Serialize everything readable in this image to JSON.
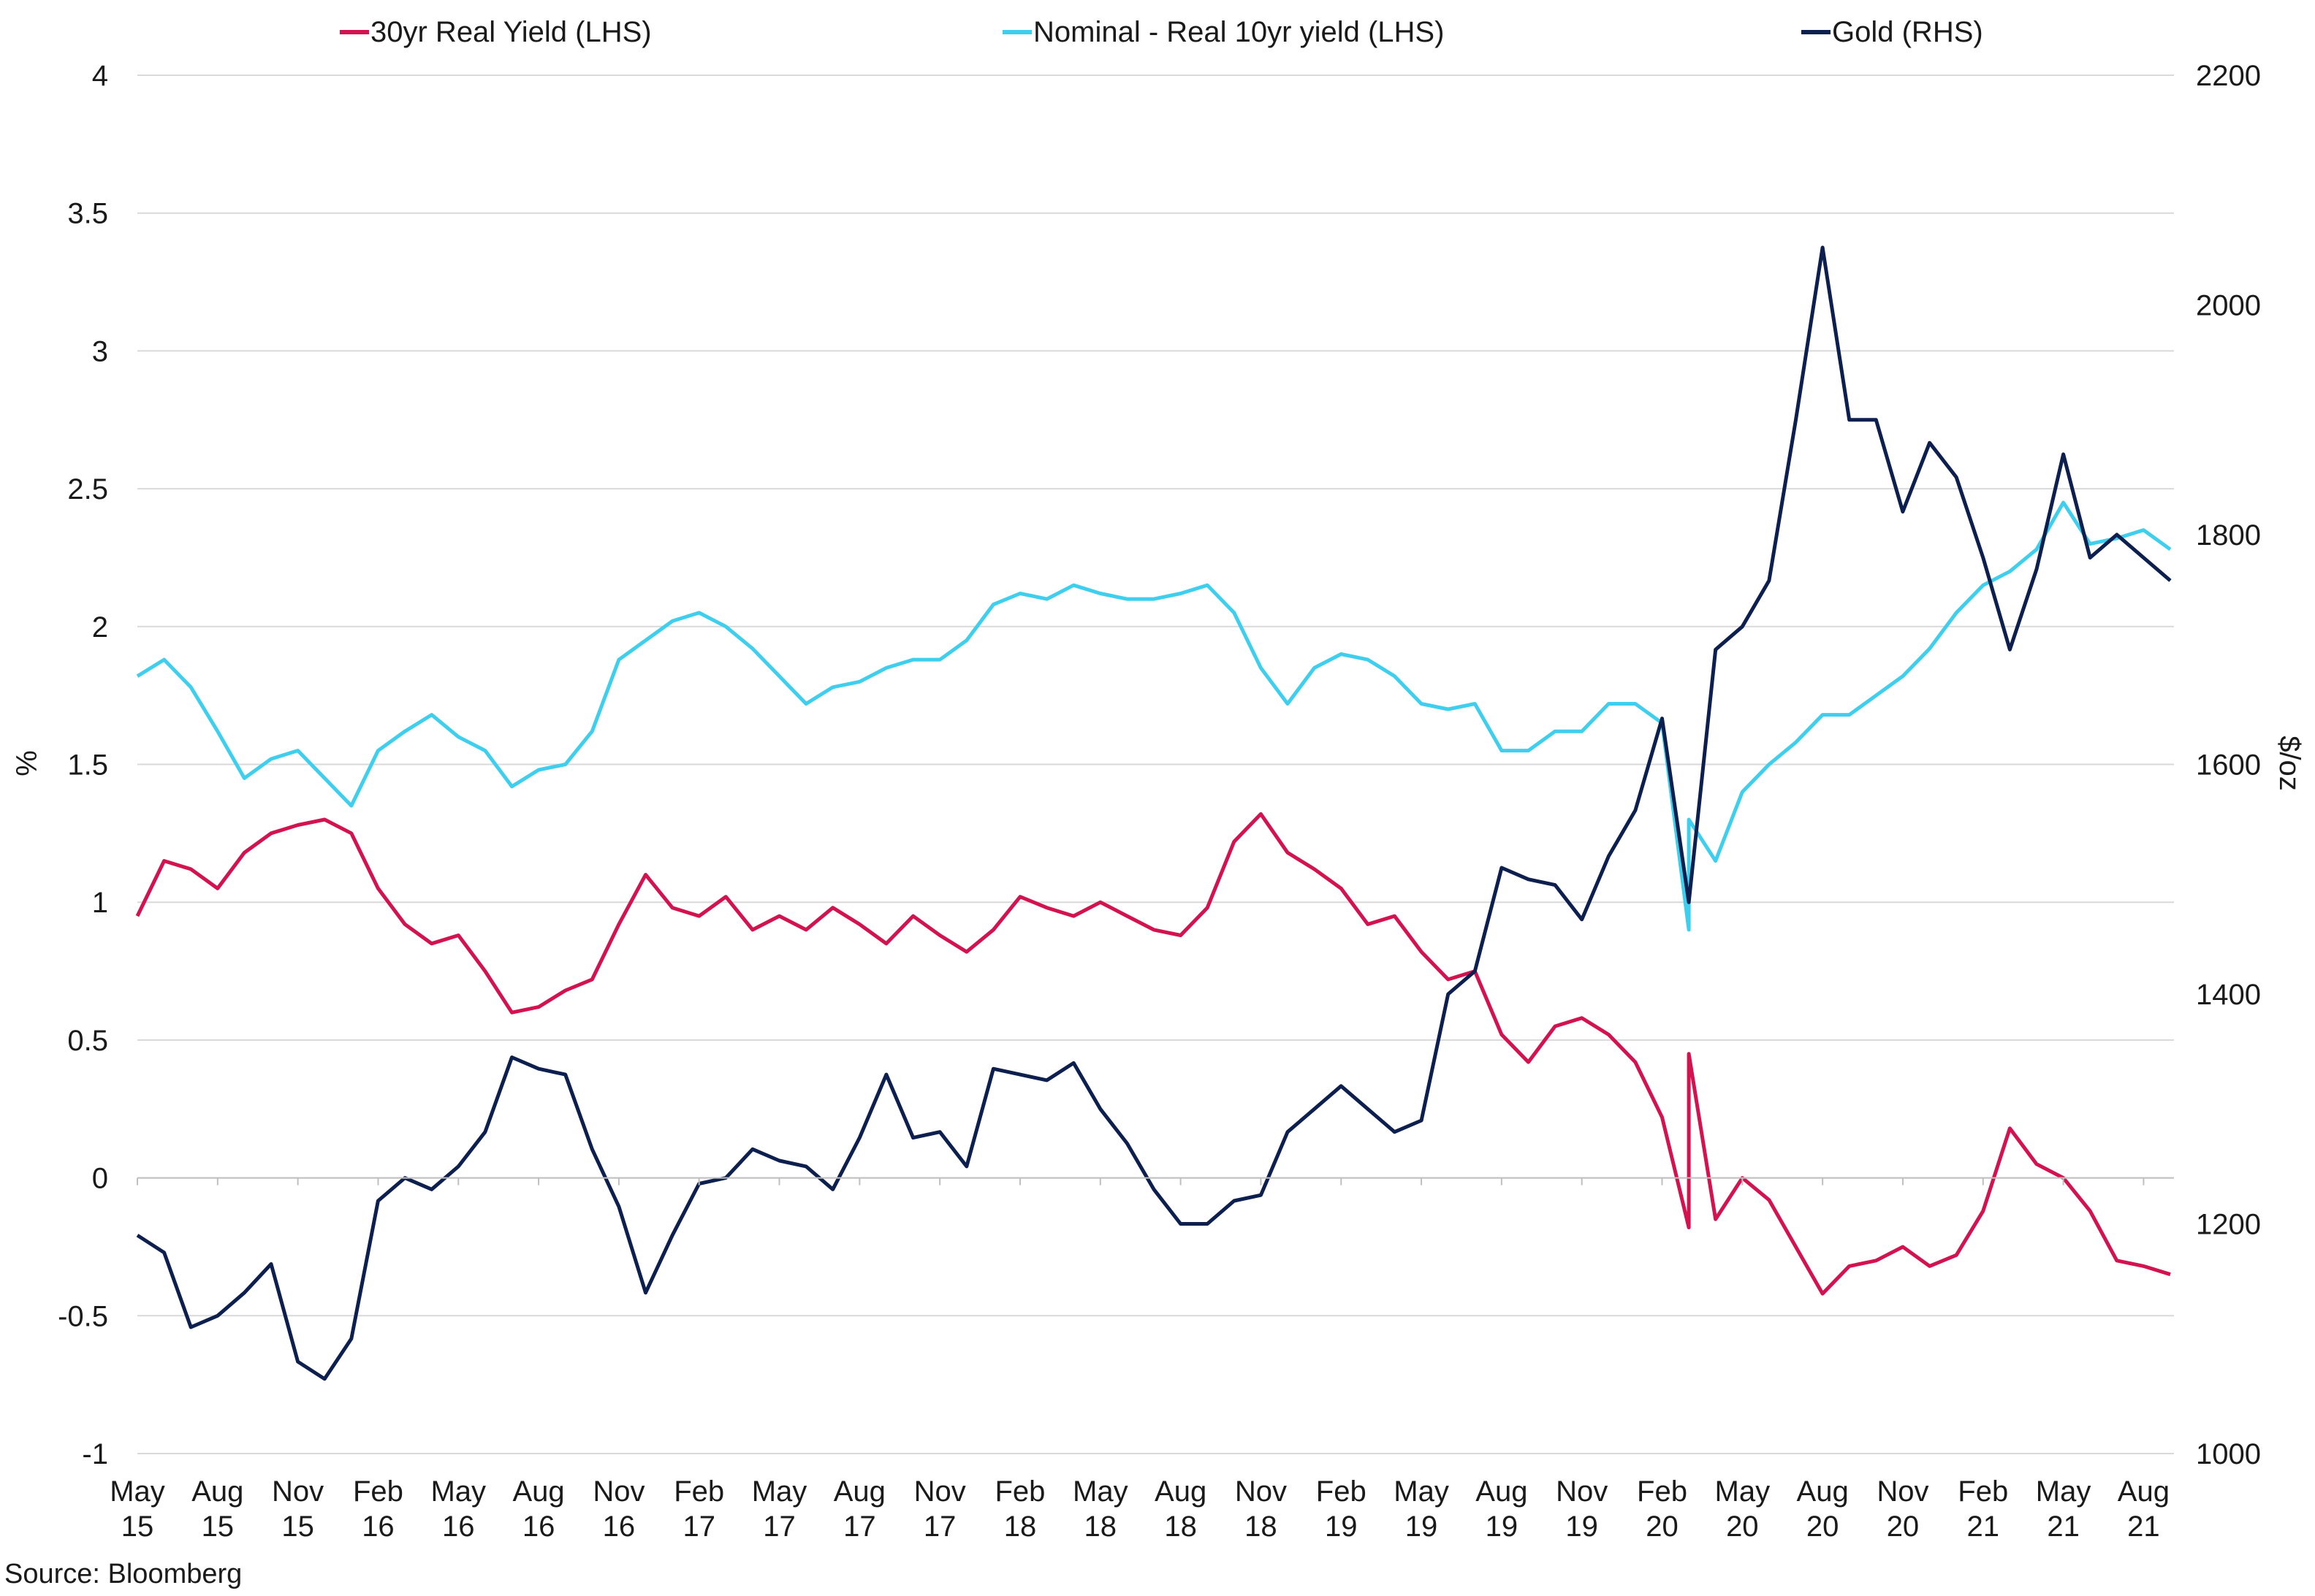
{
  "chart_data": {
    "type": "line",
    "title": "",
    "source": "Source: Bloomberg",
    "legend_position": "top",
    "grid": true,
    "y_left": {
      "label": "%",
      "ticks": [
        "4",
        "3.5",
        "3",
        "2.5",
        "2",
        "1.5",
        "1",
        "0.5",
        "0",
        "-0.5",
        "-1"
      ],
      "range": [
        -1,
        4
      ]
    },
    "y_right": {
      "label": "$/oz",
      "ticks": [
        "2200",
        "2000",
        "1800",
        "1600",
        "1400",
        "1200",
        "1000"
      ],
      "range": [
        1000,
        2200
      ]
    },
    "x_ticks": [
      {
        "month": "May",
        "year": "15"
      },
      {
        "month": "Aug",
        "year": "15"
      },
      {
        "month": "Nov",
        "year": "15"
      },
      {
        "month": "Feb",
        "year": "16"
      },
      {
        "month": "May",
        "year": "16"
      },
      {
        "month": "Aug",
        "year": "16"
      },
      {
        "month": "Nov",
        "year": "16"
      },
      {
        "month": "Feb",
        "year": "17"
      },
      {
        "month": "May",
        "year": "17"
      },
      {
        "month": "Aug",
        "year": "17"
      },
      {
        "month": "Nov",
        "year": "17"
      },
      {
        "month": "Feb",
        "year": "18"
      },
      {
        "month": "May",
        "year": "18"
      },
      {
        "month": "Aug",
        "year": "18"
      },
      {
        "month": "Nov",
        "year": "18"
      },
      {
        "month": "Feb",
        "year": "19"
      },
      {
        "month": "May",
        "year": "19"
      },
      {
        "month": "Aug",
        "year": "19"
      },
      {
        "month": "Nov",
        "year": "19"
      },
      {
        "month": "Feb",
        "year": "20"
      },
      {
        "month": "May",
        "year": "20"
      },
      {
        "month": "Aug",
        "year": "20"
      },
      {
        "month": "Nov",
        "year": "20"
      },
      {
        "month": "Feb",
        "year": "21"
      },
      {
        "month": "May",
        "year": "21"
      },
      {
        "month": "Aug",
        "year": "21"
      }
    ],
    "x_range": [
      "2015-05",
      "2021-09"
    ],
    "series": [
      {
        "name": "30yr Real Yield (LHS)",
        "axis": "left",
        "color": "#d3124f",
        "points": [
          [
            "2015-05",
            0.95
          ],
          [
            "2015-06",
            1.15
          ],
          [
            "2015-07",
            1.12
          ],
          [
            "2015-08",
            1.05
          ],
          [
            "2015-09",
            1.18
          ],
          [
            "2015-10",
            1.25
          ],
          [
            "2015-11",
            1.28
          ],
          [
            "2015-12",
            1.3
          ],
          [
            "2016-01",
            1.25
          ],
          [
            "2016-02",
            1.05
          ],
          [
            "2016-03",
            0.92
          ],
          [
            "2016-04",
            0.85
          ],
          [
            "2016-05",
            0.88
          ],
          [
            "2016-06",
            0.75
          ],
          [
            "2016-07",
            0.6
          ],
          [
            "2016-08",
            0.62
          ],
          [
            "2016-09",
            0.68
          ],
          [
            "2016-10",
            0.72
          ],
          [
            "2016-11",
            0.92
          ],
          [
            "2016-12",
            1.1
          ],
          [
            "2017-01",
            0.98
          ],
          [
            "2017-02",
            0.95
          ],
          [
            "2017-03",
            1.02
          ],
          [
            "2017-04",
            0.9
          ],
          [
            "2017-05",
            0.95
          ],
          [
            "2017-06",
            0.9
          ],
          [
            "2017-07",
            0.98
          ],
          [
            "2017-08",
            0.92
          ],
          [
            "2017-09",
            0.85
          ],
          [
            "2017-10",
            0.95
          ],
          [
            "2017-11",
            0.88
          ],
          [
            "2017-12",
            0.82
          ],
          [
            "2018-01",
            0.9
          ],
          [
            "2018-02",
            1.02
          ],
          [
            "2018-03",
            0.98
          ],
          [
            "2018-04",
            0.95
          ],
          [
            "2018-05",
            1.0
          ],
          [
            "2018-06",
            0.95
          ],
          [
            "2018-07",
            0.9
          ],
          [
            "2018-08",
            0.88
          ],
          [
            "2018-09",
            0.98
          ],
          [
            "2018-10",
            1.22
          ],
          [
            "2018-11",
            1.32
          ],
          [
            "2018-12",
            1.18
          ],
          [
            "2019-01",
            1.12
          ],
          [
            "2019-02",
            1.05
          ],
          [
            "2019-03",
            0.92
          ],
          [
            "2019-04",
            0.95
          ],
          [
            "2019-05",
            0.82
          ],
          [
            "2019-06",
            0.72
          ],
          [
            "2019-07",
            0.75
          ],
          [
            "2019-08",
            0.52
          ],
          [
            "2019-09",
            0.42
          ],
          [
            "2019-10",
            0.55
          ],
          [
            "2019-11",
            0.58
          ],
          [
            "2019-12",
            0.52
          ],
          [
            "2020-01",
            0.42
          ],
          [
            "2020-02",
            0.22
          ],
          [
            "2020-03",
            -0.18
          ],
          [
            "2020-03",
            0.45
          ],
          [
            "2020-04",
            -0.15
          ],
          [
            "2020-05",
            0.0
          ],
          [
            "2020-06",
            -0.08
          ],
          [
            "2020-07",
            -0.25
          ],
          [
            "2020-08",
            -0.42
          ],
          [
            "2020-09",
            -0.32
          ],
          [
            "2020-10",
            -0.3
          ],
          [
            "2020-11",
            -0.25
          ],
          [
            "2020-12",
            -0.32
          ],
          [
            "2021-01",
            -0.28
          ],
          [
            "2021-02",
            -0.12
          ],
          [
            "2021-03",
            0.18
          ],
          [
            "2021-04",
            0.05
          ],
          [
            "2021-05",
            0.0
          ],
          [
            "2021-06",
            -0.12
          ],
          [
            "2021-07",
            -0.3
          ],
          [
            "2021-08",
            -0.32
          ],
          [
            "2021-09",
            -0.35
          ]
        ]
      },
      {
        "name": "Nominal - Real 10yr yield (LHS)",
        "axis": "left",
        "color": "#3fcfee",
        "points": [
          [
            "2015-05",
            1.82
          ],
          [
            "2015-06",
            1.88
          ],
          [
            "2015-07",
            1.78
          ],
          [
            "2015-08",
            1.62
          ],
          [
            "2015-09",
            1.45
          ],
          [
            "2015-10",
            1.52
          ],
          [
            "2015-11",
            1.55
          ],
          [
            "2015-12",
            1.45
          ],
          [
            "2016-01",
            1.35
          ],
          [
            "2016-02",
            1.55
          ],
          [
            "2016-03",
            1.62
          ],
          [
            "2016-04",
            1.68
          ],
          [
            "2016-05",
            1.6
          ],
          [
            "2016-06",
            1.55
          ],
          [
            "2016-07",
            1.42
          ],
          [
            "2016-08",
            1.48
          ],
          [
            "2016-09",
            1.5
          ],
          [
            "2016-10",
            1.62
          ],
          [
            "2016-11",
            1.88
          ],
          [
            "2016-12",
            1.95
          ],
          [
            "2017-01",
            2.02
          ],
          [
            "2017-02",
            2.05
          ],
          [
            "2017-03",
            2.0
          ],
          [
            "2017-04",
            1.92
          ],
          [
            "2017-05",
            1.82
          ],
          [
            "2017-06",
            1.72
          ],
          [
            "2017-07",
            1.78
          ],
          [
            "2017-08",
            1.8
          ],
          [
            "2017-09",
            1.85
          ],
          [
            "2017-10",
            1.88
          ],
          [
            "2017-11",
            1.88
          ],
          [
            "2017-12",
            1.95
          ],
          [
            "2018-01",
            2.08
          ],
          [
            "2018-02",
            2.12
          ],
          [
            "2018-03",
            2.1
          ],
          [
            "2018-04",
            2.15
          ],
          [
            "2018-05",
            2.12
          ],
          [
            "2018-06",
            2.1
          ],
          [
            "2018-07",
            2.1
          ],
          [
            "2018-08",
            2.12
          ],
          [
            "2018-09",
            2.15
          ],
          [
            "2018-10",
            2.05
          ],
          [
            "2018-11",
            1.85
          ],
          [
            "2018-12",
            1.72
          ],
          [
            "2019-01",
            1.85
          ],
          [
            "2019-02",
            1.9
          ],
          [
            "2019-03",
            1.88
          ],
          [
            "2019-04",
            1.82
          ],
          [
            "2019-05",
            1.72
          ],
          [
            "2019-06",
            1.7
          ],
          [
            "2019-07",
            1.72
          ],
          [
            "2019-08",
            1.55
          ],
          [
            "2019-09",
            1.55
          ],
          [
            "2019-10",
            1.62
          ],
          [
            "2019-11",
            1.62
          ],
          [
            "2019-12",
            1.72
          ],
          [
            "2020-01",
            1.72
          ],
          [
            "2020-02",
            1.65
          ],
          [
            "2020-03",
            0.9
          ],
          [
            "2020-03",
            1.3
          ],
          [
            "2020-04",
            1.15
          ],
          [
            "2020-05",
            1.4
          ],
          [
            "2020-06",
            1.5
          ],
          [
            "2020-07",
            1.58
          ],
          [
            "2020-08",
            1.68
          ],
          [
            "2020-09",
            1.68
          ],
          [
            "2020-10",
            1.75
          ],
          [
            "2020-11",
            1.82
          ],
          [
            "2020-12",
            1.92
          ],
          [
            "2021-01",
            2.05
          ],
          [
            "2021-02",
            2.15
          ],
          [
            "2021-03",
            2.2
          ],
          [
            "2021-04",
            2.28
          ],
          [
            "2021-05",
            2.45
          ],
          [
            "2021-06",
            2.3
          ],
          [
            "2021-07",
            2.32
          ],
          [
            "2021-08",
            2.35
          ],
          [
            "2021-09",
            2.28
          ]
        ]
      },
      {
        "name": "Gold (RHS)",
        "axis": "right",
        "color": "#0c1f4f",
        "points": [
          [
            "2015-05",
            1190
          ],
          [
            "2015-06",
            1175
          ],
          [
            "2015-07",
            1110
          ],
          [
            "2015-08",
            1120
          ],
          [
            "2015-09",
            1140
          ],
          [
            "2015-10",
            1165
          ],
          [
            "2015-11",
            1080
          ],
          [
            "2015-12",
            1065
          ],
          [
            "2016-01",
            1100
          ],
          [
            "2016-02",
            1220
          ],
          [
            "2016-03",
            1240
          ],
          [
            "2016-04",
            1230
          ],
          [
            "2016-05",
            1250
          ],
          [
            "2016-06",
            1280
          ],
          [
            "2016-07",
            1345
          ],
          [
            "2016-08",
            1335
          ],
          [
            "2016-09",
            1330
          ],
          [
            "2016-10",
            1265
          ],
          [
            "2016-11",
            1215
          ],
          [
            "2016-12",
            1140
          ],
          [
            "2017-01",
            1190
          ],
          [
            "2017-02",
            1235
          ],
          [
            "2017-03",
            1240
          ],
          [
            "2017-04",
            1265
          ],
          [
            "2017-05",
            1255
          ],
          [
            "2017-06",
            1250
          ],
          [
            "2017-07",
            1230
          ],
          [
            "2017-08",
            1275
          ],
          [
            "2017-09",
            1330
          ],
          [
            "2017-10",
            1275
          ],
          [
            "2017-11",
            1280
          ],
          [
            "2017-12",
            1250
          ],
          [
            "2018-01",
            1335
          ],
          [
            "2018-02",
            1330
          ],
          [
            "2018-03",
            1325
          ],
          [
            "2018-04",
            1340
          ],
          [
            "2018-05",
            1300
          ],
          [
            "2018-06",
            1270
          ],
          [
            "2018-07",
            1230
          ],
          [
            "2018-08",
            1200
          ],
          [
            "2018-09",
            1200
          ],
          [
            "2018-10",
            1220
          ],
          [
            "2018-11",
            1225
          ],
          [
            "2018-12",
            1280
          ],
          [
            "2019-01",
            1300
          ],
          [
            "2019-02",
            1320
          ],
          [
            "2019-03",
            1300
          ],
          [
            "2019-04",
            1280
          ],
          [
            "2019-05",
            1290
          ],
          [
            "2019-06",
            1400
          ],
          [
            "2019-07",
            1420
          ],
          [
            "2019-08",
            1510
          ],
          [
            "2019-09",
            1500
          ],
          [
            "2019-10",
            1495
          ],
          [
            "2019-11",
            1465
          ],
          [
            "2019-12",
            1520
          ],
          [
            "2020-01",
            1560
          ],
          [
            "2020-02",
            1640
          ],
          [
            "2020-03",
            1480
          ],
          [
            "2020-04",
            1700
          ],
          [
            "2020-05",
            1720
          ],
          [
            "2020-06",
            1760
          ],
          [
            "2020-07",
            1900
          ],
          [
            "2020-08",
            2050
          ],
          [
            "2020-09",
            1900
          ],
          [
            "2020-10",
            1900
          ],
          [
            "2020-11",
            1820
          ],
          [
            "2020-12",
            1880
          ],
          [
            "2021-01",
            1850
          ],
          [
            "2021-02",
            1780
          ],
          [
            "2021-03",
            1700
          ],
          [
            "2021-04",
            1770
          ],
          [
            "2021-05",
            1870
          ],
          [
            "2021-06",
            1780
          ],
          [
            "2021-07",
            1800
          ],
          [
            "2021-08",
            1780
          ],
          [
            "2021-09",
            1760
          ]
        ]
      }
    ]
  }
}
